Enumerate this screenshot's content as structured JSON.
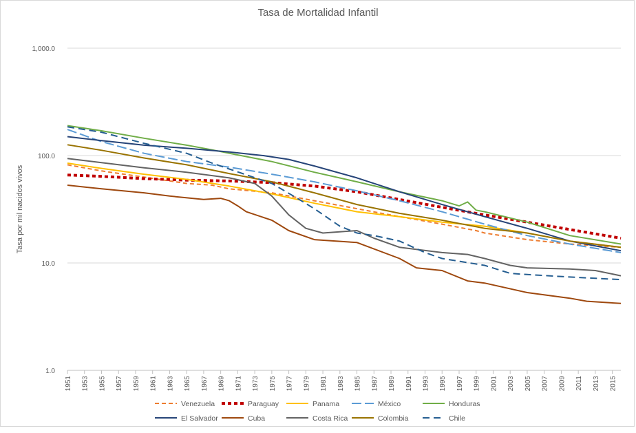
{
  "chart_data": {
    "type": "line",
    "title": "Tasa de Mortalidad Infantil",
    "xlabel": "",
    "ylabel": "Tasa por mil nacidos vivos",
    "yscale": "log",
    "ylim": [
      1,
      1000
    ],
    "y_ticks": [
      1,
      10,
      100,
      1000
    ],
    "y_tick_labels": [
      "1.0",
      "10.0",
      "100.0",
      "1,000.0"
    ],
    "x_ticks": [
      1951,
      1953,
      1955,
      1957,
      1959,
      1961,
      1963,
      1965,
      1967,
      1969,
      1971,
      1973,
      1975,
      1977,
      1979,
      1981,
      1983,
      1985,
      1987,
      1989,
      1991,
      1993,
      1995,
      1997,
      1999,
      2001,
      2003,
      2005,
      2007,
      2009,
      2011,
      2013,
      2015
    ],
    "x_range": [
      1951,
      2016
    ],
    "legend_position": "bottom",
    "series": [
      {
        "name": "Venezuela",
        "color": "#ED7D31",
        "dash": "6,4",
        "width": 2,
        "points": [
          [
            1951,
            82
          ],
          [
            1955,
            72
          ],
          [
            1960,
            63
          ],
          [
            1965,
            55
          ],
          [
            1968,
            53
          ],
          [
            1970,
            49
          ],
          [
            1975,
            45
          ],
          [
            1980,
            38
          ],
          [
            1985,
            32
          ],
          [
            1990,
            27
          ],
          [
            1995,
            23
          ],
          [
            1999,
            20
          ],
          [
            2000,
            19
          ],
          [
            2005,
            16.5
          ],
          [
            2010,
            15
          ],
          [
            2016,
            14
          ]
        ]
      },
      {
        "name": "Paraguay",
        "color": "#C00000",
        "dash": "5,4",
        "width": 4,
        "points": [
          [
            1951,
            66
          ],
          [
            1955,
            64
          ],
          [
            1960,
            61
          ],
          [
            1965,
            59
          ],
          [
            1970,
            58
          ],
          [
            1975,
            56
          ],
          [
            1980,
            52
          ],
          [
            1985,
            46
          ],
          [
            1990,
            39
          ],
          [
            1995,
            33
          ],
          [
            2000,
            28
          ],
          [
            2005,
            24
          ],
          [
            2010,
            20.5
          ],
          [
            2016,
            17
          ]
        ]
      },
      {
        "name": "Panama",
        "color": "#FFC000",
        "dash": "",
        "width": 2,
        "points": [
          [
            1951,
            85
          ],
          [
            1955,
            76
          ],
          [
            1960,
            67
          ],
          [
            1965,
            60
          ],
          [
            1970,
            52
          ],
          [
            1975,
            44
          ],
          [
            1980,
            36
          ],
          [
            1985,
            30
          ],
          [
            1990,
            27
          ],
          [
            1995,
            24
          ],
          [
            2000,
            22
          ],
          [
            2005,
            19
          ],
          [
            2010,
            16
          ],
          [
            2016,
            14
          ]
        ]
      },
      {
        "name": "México",
        "color": "#5B9BD5",
        "dash": "14,5",
        "width": 2,
        "points": [
          [
            1951,
            175
          ],
          [
            1955,
            135
          ],
          [
            1960,
            105
          ],
          [
            1965,
            88
          ],
          [
            1970,
            78
          ],
          [
            1975,
            67
          ],
          [
            1980,
            57
          ],
          [
            1985,
            47
          ],
          [
            1990,
            38
          ],
          [
            1995,
            30
          ],
          [
            2000,
            23
          ],
          [
            2005,
            18
          ],
          [
            2010,
            15
          ],
          [
            2016,
            12.5
          ]
        ]
      },
      {
        "name": "Honduras",
        "color": "#70AD47",
        "dash": "",
        "width": 2,
        "points": [
          [
            1951,
            190
          ],
          [
            1955,
            170
          ],
          [
            1960,
            145
          ],
          [
            1965,
            125
          ],
          [
            1968,
            113
          ],
          [
            1970,
            105
          ],
          [
            1975,
            88
          ],
          [
            1980,
            70
          ],
          [
            1985,
            57
          ],
          [
            1990,
            46
          ],
          [
            1995,
            38
          ],
          [
            1997,
            34
          ],
          [
            1998,
            37
          ],
          [
            1999,
            31
          ],
          [
            2000,
            30
          ],
          [
            2005,
            24
          ],
          [
            2010,
            18
          ],
          [
            2016,
            15
          ]
        ]
      },
      {
        "name": "El Salvador",
        "color": "#264478",
        "dash": "",
        "width": 2,
        "points": [
          [
            1951,
            150
          ],
          [
            1955,
            138
          ],
          [
            1960,
            125
          ],
          [
            1965,
            117
          ],
          [
            1970,
            108
          ],
          [
            1974,
            100
          ],
          [
            1977,
            92
          ],
          [
            1980,
            80
          ],
          [
            1985,
            62
          ],
          [
            1990,
            46
          ],
          [
            1995,
            35
          ],
          [
            2000,
            27
          ],
          [
            2005,
            21
          ],
          [
            2010,
            16
          ],
          [
            2016,
            13
          ]
        ]
      },
      {
        "name": "Cuba",
        "color": "#9E480E",
        "dash": "",
        "width": 2,
        "points": [
          [
            1951,
            53
          ],
          [
            1955,
            49
          ],
          [
            1960,
            45
          ],
          [
            1963,
            42
          ],
          [
            1967,
            39
          ],
          [
            1969,
            40
          ],
          [
            1970,
            38
          ],
          [
            1971,
            34
          ],
          [
            1972,
            30
          ],
          [
            1975,
            25
          ],
          [
            1977,
            20
          ],
          [
            1980,
            16.5
          ],
          [
            1985,
            15.5
          ],
          [
            1990,
            11
          ],
          [
            1992,
            9
          ],
          [
            1995,
            8.5
          ],
          [
            1998,
            6.8
          ],
          [
            2000,
            6.5
          ],
          [
            2005,
            5.3
          ],
          [
            2010,
            4.7
          ],
          [
            2012,
            4.4
          ],
          [
            2016,
            4.2
          ]
        ]
      },
      {
        "name": "Costa Rica",
        "color": "#636363",
        "dash": "",
        "width": 2,
        "points": [
          [
            1951,
            94
          ],
          [
            1955,
            86
          ],
          [
            1960,
            77
          ],
          [
            1965,
            70
          ],
          [
            1970,
            62
          ],
          [
            1973,
            55
          ],
          [
            1975,
            42
          ],
          [
            1977,
            28
          ],
          [
            1979,
            21
          ],
          [
            1981,
            19
          ],
          [
            1985,
            20
          ],
          [
            1987,
            17
          ],
          [
            1990,
            14
          ],
          [
            1995,
            12.5
          ],
          [
            1998,
            12
          ],
          [
            2000,
            11
          ],
          [
            2003,
            9.5
          ],
          [
            2005,
            9
          ],
          [
            2010,
            8.8
          ],
          [
            2013,
            8.5
          ],
          [
            2016,
            7.6
          ]
        ]
      },
      {
        "name": "Colombia",
        "color": "#997300",
        "dash": "",
        "width": 2,
        "points": [
          [
            1951,
            126
          ],
          [
            1955,
            112
          ],
          [
            1960,
            95
          ],
          [
            1965,
            82
          ],
          [
            1970,
            68
          ],
          [
            1975,
            57
          ],
          [
            1980,
            45
          ],
          [
            1985,
            35
          ],
          [
            1990,
            29
          ],
          [
            1995,
            25
          ],
          [
            2000,
            21
          ],
          [
            2005,
            19
          ],
          [
            2010,
            16
          ],
          [
            2016,
            14
          ]
        ]
      },
      {
        "name": "Chile",
        "color": "#255E91",
        "dash": "10,6",
        "width": 2,
        "points": [
          [
            1951,
            185
          ],
          [
            1955,
            165
          ],
          [
            1960,
            130
          ],
          [
            1965,
            105
          ],
          [
            1968,
            85
          ],
          [
            1970,
            75
          ],
          [
            1975,
            55
          ],
          [
            1978,
            40
          ],
          [
            1980,
            32
          ],
          [
            1983,
            22
          ],
          [
            1985,
            19
          ],
          [
            1987,
            18
          ],
          [
            1990,
            16
          ],
          [
            1993,
            12.5
          ],
          [
            1995,
            11
          ],
          [
            2000,
            9.5
          ],
          [
            2003,
            8
          ],
          [
            2005,
            7.8
          ],
          [
            2010,
            7.4
          ],
          [
            2016,
            7
          ]
        ]
      }
    ]
  }
}
